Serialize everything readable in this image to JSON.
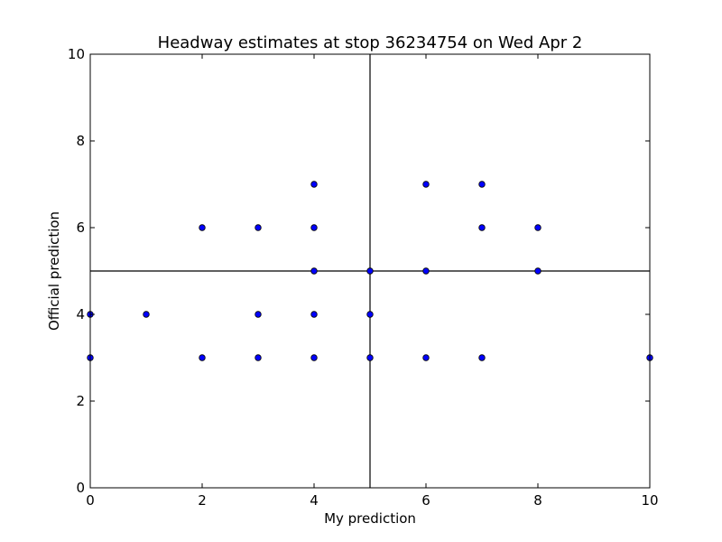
{
  "chart_data": {
    "type": "scatter",
    "title": "Headway estimates at stop 36234754 on Wed Apr 2",
    "xlabel": "My prediction",
    "ylabel": "Official prediction",
    "xlim": [
      0,
      10
    ],
    "ylim": [
      0,
      10
    ],
    "xticks": [
      0,
      2,
      4,
      6,
      8,
      10
    ],
    "yticks": [
      0,
      2,
      4,
      6,
      8,
      10
    ],
    "reference_lines": {
      "x": 5,
      "y": 5
    },
    "grid": false,
    "legend": "none",
    "marker_color": "#0000ff",
    "marker_edge_color": "#000000",
    "points": [
      {
        "x": 0,
        "y": 4
      },
      {
        "x": 0,
        "y": 3
      },
      {
        "x": 1,
        "y": 4
      },
      {
        "x": 2,
        "y": 6
      },
      {
        "x": 2,
        "y": 3
      },
      {
        "x": 3,
        "y": 6
      },
      {
        "x": 3,
        "y": 4
      },
      {
        "x": 3,
        "y": 3
      },
      {
        "x": 4,
        "y": 7
      },
      {
        "x": 4,
        "y": 6
      },
      {
        "x": 4,
        "y": 5
      },
      {
        "x": 4,
        "y": 4
      },
      {
        "x": 4,
        "y": 3
      },
      {
        "x": 5,
        "y": 5
      },
      {
        "x": 5,
        "y": 4
      },
      {
        "x": 5,
        "y": 3
      },
      {
        "x": 6,
        "y": 7
      },
      {
        "x": 6,
        "y": 5
      },
      {
        "x": 6,
        "y": 3
      },
      {
        "x": 7,
        "y": 7
      },
      {
        "x": 7,
        "y": 6
      },
      {
        "x": 7,
        "y": 3
      },
      {
        "x": 8,
        "y": 6
      },
      {
        "x": 8,
        "y": 5
      },
      {
        "x": 10,
        "y": 3
      }
    ]
  }
}
